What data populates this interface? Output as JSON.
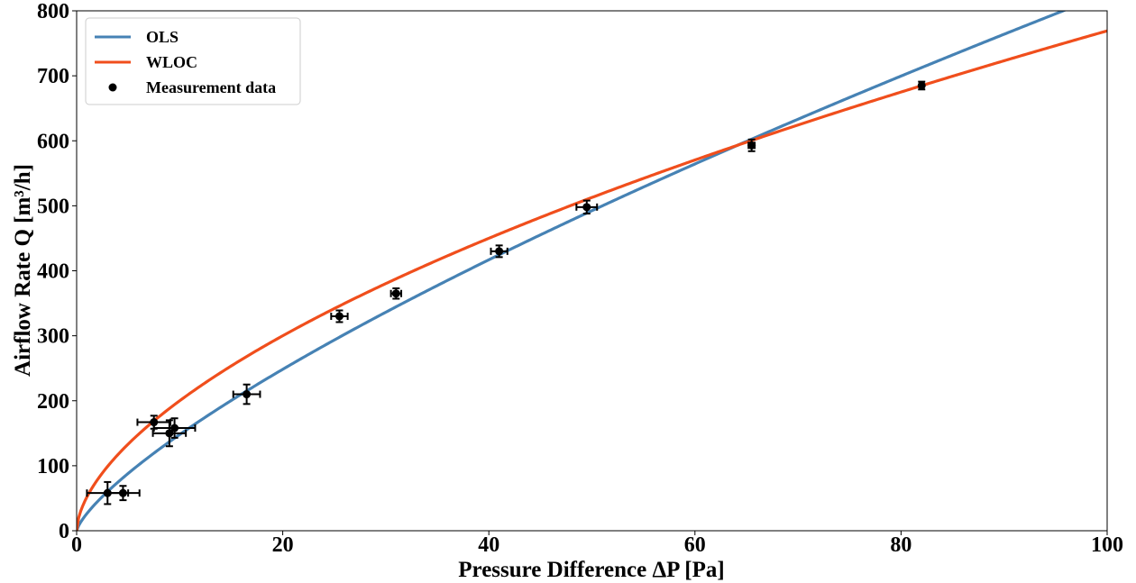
{
  "chart_data": {
    "type": "scatter",
    "xlabel": "Pressure Difference ΔP [Pa]",
    "ylabel": "Airflow Rate Q [m³/h]",
    "xlim": [
      0,
      100
    ],
    "ylim": [
      0,
      800
    ],
    "xticks": [
      "0",
      "20",
      "40",
      "60",
      "80",
      "100"
    ],
    "yticks": [
      "0",
      "100",
      "200",
      "300",
      "400",
      "500",
      "600",
      "700",
      "800"
    ],
    "grid": false,
    "legend_position": "top-left",
    "series": [
      {
        "name": "OLS",
        "kind": "curve",
        "color": "#4682b4",
        "model": {
          "C": 26.5,
          "n": 0.747
        }
      },
      {
        "name": "WLOC",
        "kind": "curve",
        "color": "#f04e1c",
        "model": {
          "C": 52.0,
          "n": 0.585
        }
      },
      {
        "name": "Measurement data",
        "kind": "points",
        "color": "#000000",
        "points": [
          {
            "x": 3.0,
            "y": 58,
            "xerr": 2.0,
            "yerr": 17
          },
          {
            "x": 4.5,
            "y": 58,
            "xerr": 1.6,
            "yerr": 11
          },
          {
            "x": 7.5,
            "y": 167,
            "xerr": 1.6,
            "yerr": 10
          },
          {
            "x": 9.0,
            "y": 150,
            "xerr": 1.6,
            "yerr": 20
          },
          {
            "x": 9.5,
            "y": 158,
            "xerr": 2.0,
            "yerr": 15
          },
          {
            "x": 16.5,
            "y": 210,
            "xerr": 1.3,
            "yerr": 15
          },
          {
            "x": 25.5,
            "y": 330,
            "xerr": 0.8,
            "yerr": 9
          },
          {
            "x": 31.0,
            "y": 365,
            "xerr": 0.5,
            "yerr": 8
          },
          {
            "x": 41.0,
            "y": 430,
            "xerr": 0.8,
            "yerr": 9
          },
          {
            "x": 49.5,
            "y": 498,
            "xerr": 1.0,
            "yerr": 10
          },
          {
            "x": 65.5,
            "y": 593,
            "xerr": 0.3,
            "yerr": 9
          },
          {
            "x": 82.0,
            "y": 685,
            "xerr": 0.2,
            "yerr": 6
          }
        ]
      }
    ]
  }
}
